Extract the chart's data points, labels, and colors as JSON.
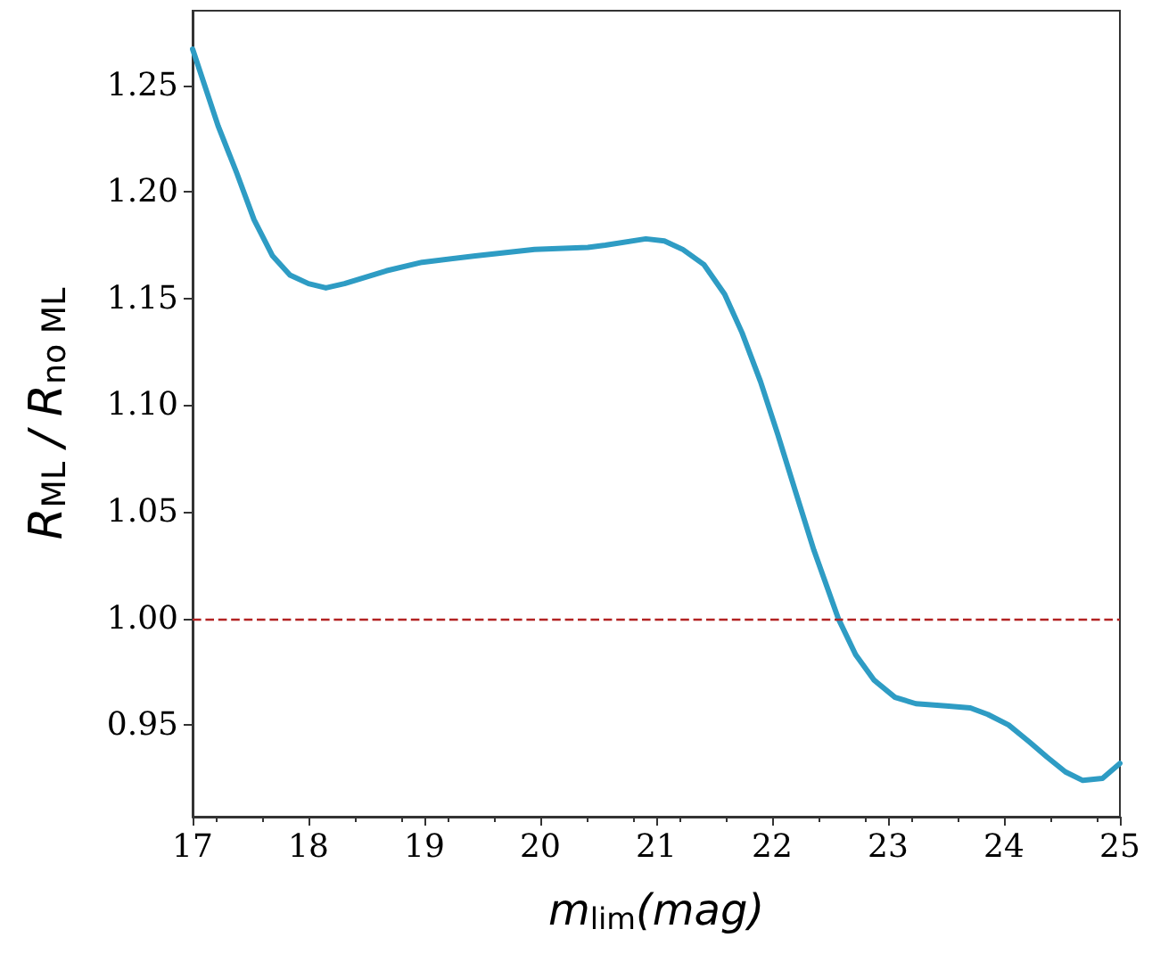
{
  "chart_data": {
    "type": "line",
    "xlabel": "m$_{lim}$(mag)",
    "ylabel": "R$_{ML}$ / R$_{no ML}$",
    "x": [
      17,
      17.22,
      17.38,
      17.53,
      17.69,
      17.84,
      18.0,
      18.15,
      18.31,
      18.67,
      18.98,
      19.44,
      19.95,
      20.41,
      20.56,
      20.91,
      21.07,
      21.23,
      21.41,
      21.59,
      21.74,
      21.9,
      22.05,
      22.21,
      22.36,
      22.57,
      22.72,
      22.88,
      23.06,
      23.24,
      23.5,
      23.71,
      23.86,
      24.04,
      24.22,
      24.37,
      24.53,
      24.68,
      24.85,
      25.0
    ],
    "series": [
      {
        "color": "#2e9cc4",
        "values": [
          1.267,
          1.231,
          1.209,
          1.187,
          1.17,
          1.161,
          1.157,
          1.155,
          1.157,
          1.163,
          1.167,
          1.17,
          1.173,
          1.174,
          1.175,
          1.178,
          1.177,
          1.173,
          1.166,
          1.152,
          1.134,
          1.111,
          1.086,
          1.058,
          1.032,
          1.0,
          0.983,
          0.971,
          0.963,
          0.96,
          0.959,
          0.958,
          0.955,
          0.95,
          0.942,
          0.935,
          0.928,
          0.924,
          0.925,
          0.932
        ]
      }
    ],
    "xlim": [
      17,
      25
    ],
    "xticks": [
      17,
      18,
      19,
      20,
      21,
      22,
      23,
      24,
      25
    ],
    "ylim": [
      0.907,
      1.285
    ],
    "yticks": [
      0.95,
      {
        "value": 1,
        "label": "1.00"
      },
      1.05,
      {
        "value": 1.1,
        "label": "1.10"
      },
      1.15,
      {
        "value": 1.2,
        "label": "1.20"
      },
      1.25
    ],
    "ref_lines": [
      {
        "axis": "y",
        "value": 1,
        "color": "#b22222",
        "line_style": "dashed"
      }
    ],
    "grid": false,
    "marker": "none",
    "line_style": "solid"
  }
}
